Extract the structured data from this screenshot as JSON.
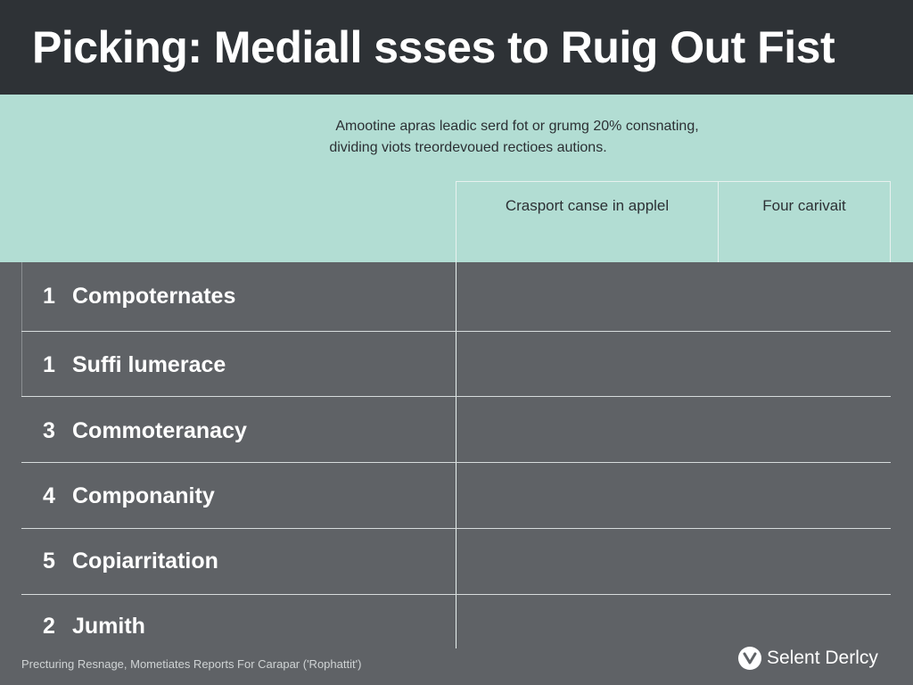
{
  "title": "Picking: Mediall ssses to Ruig Out Fist",
  "intro": {
    "line1": "Amootine apras leadic serd fot or grumg 20% consnating,",
    "line2": "dividing viots treordevoued rectioes autions."
  },
  "columns": [
    "Crasport canse in applel",
    "Four carivait"
  ],
  "rows": [
    {
      "num": "1",
      "label": "Compoternates"
    },
    {
      "num": "1",
      "label": "Suffi lumerace"
    },
    {
      "num": "3",
      "label": "Commoteranacy"
    },
    {
      "num": "4",
      "label": "Componanity"
    },
    {
      "num": "5",
      "label": "Copiarritation"
    },
    {
      "num": "2",
      "label": "Jumith"
    }
  ],
  "footer": "Precturing Resnage, Mometiates Reports For Carapar ('Rophattit')",
  "brand": {
    "name": "Selent Derlcy",
    "icon": "check-v-icon"
  },
  "colors": {
    "title_bar": "#2e3236",
    "mint": "#b2ddd3",
    "table_bg": "#5f6266"
  }
}
